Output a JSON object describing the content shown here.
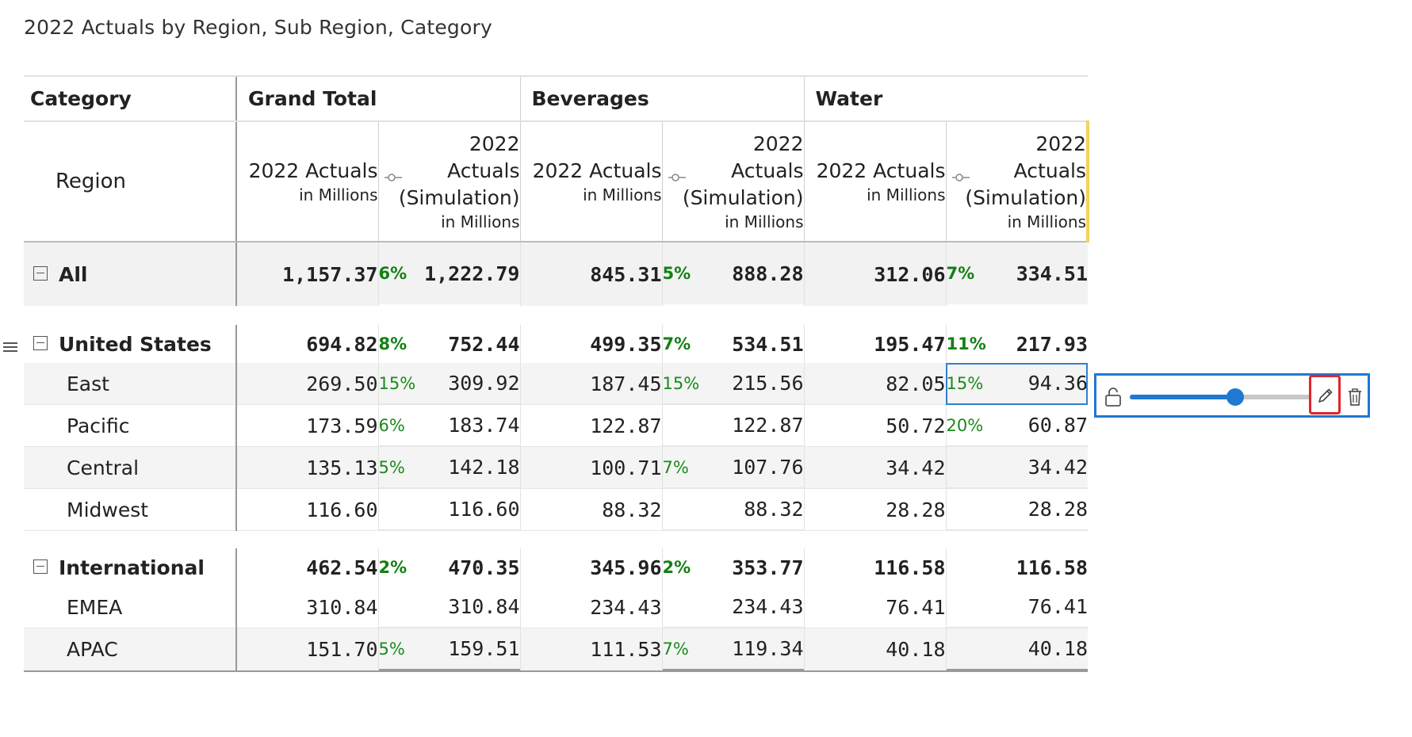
{
  "title": "2022 Actuals by Region, Sub Region, Category",
  "header": {
    "category_label": "Category",
    "region_label": "Region",
    "groups": [
      "Grand Total",
      "Beverages",
      "Water"
    ],
    "measure_actual": "2022 Actuals",
    "measure_sim_line1": "2022",
    "measure_sim_line2": "Actuals",
    "measure_sim_line3": "(Simulation)",
    "unit": "in Millions"
  },
  "rows": [
    {
      "label": "All",
      "gt_a": "1,157.37",
      "gt_p": "6%",
      "gt_s": "1,222.79",
      "bv_a": "845.31",
      "bv_p": "5%",
      "bv_s": "888.28",
      "wt_a": "312.06",
      "wt_p": "7%",
      "wt_s": "334.51"
    },
    {
      "label": "United States",
      "gt_a": "694.82",
      "gt_p": "8%",
      "gt_s": "752.44",
      "bv_a": "499.35",
      "bv_p": "7%",
      "bv_s": "534.51",
      "wt_a": "195.47",
      "wt_p": "11%",
      "wt_s": "217.93"
    },
    {
      "label": "East",
      "gt_a": "269.50",
      "gt_p": "15%",
      "gt_s": "309.92",
      "bv_a": "187.45",
      "bv_p": "15%",
      "bv_s": "215.56",
      "wt_a": "82.05",
      "wt_p": "15%",
      "wt_s": "94.36"
    },
    {
      "label": "Pacific",
      "gt_a": "173.59",
      "gt_p": "6%",
      "gt_s": "183.74",
      "bv_a": "122.87",
      "bv_p": "",
      "bv_s": "122.87",
      "wt_a": "50.72",
      "wt_p": "20%",
      "wt_s": "60.87"
    },
    {
      "label": "Central",
      "gt_a": "135.13",
      "gt_p": "5%",
      "gt_s": "142.18",
      "bv_a": "100.71",
      "bv_p": "7%",
      "bv_s": "107.76",
      "wt_a": "34.42",
      "wt_p": "",
      "wt_s": "34.42"
    },
    {
      "label": "Midwest",
      "gt_a": "116.60",
      "gt_p": "",
      "gt_s": "116.60",
      "bv_a": "88.32",
      "bv_p": "",
      "bv_s": "88.32",
      "wt_a": "28.28",
      "wt_p": "",
      "wt_s": "28.28"
    },
    {
      "label": "International",
      "gt_a": "462.54",
      "gt_p": "2%",
      "gt_s": "470.35",
      "bv_a": "345.96",
      "bv_p": "2%",
      "bv_s": "353.77",
      "wt_a": "116.58",
      "wt_p": "",
      "wt_s": "116.58"
    },
    {
      "label": "EMEA",
      "gt_a": "310.84",
      "gt_p": "",
      "gt_s": "310.84",
      "bv_a": "234.43",
      "bv_p": "",
      "bv_s": "234.43",
      "wt_a": "76.41",
      "wt_p": "",
      "wt_s": "76.41"
    },
    {
      "label": "APAC",
      "gt_a": "151.70",
      "gt_p": "5%",
      "gt_s": "159.51",
      "bv_a": "111.53",
      "bv_p": "7%",
      "bv_s": "119.34",
      "wt_a": "40.18",
      "wt_p": "",
      "wt_s": "40.18"
    }
  ],
  "editor": {
    "slider_value": 0.58,
    "icons": [
      "lock-icon",
      "pencil-icon",
      "trash-icon"
    ],
    "accent": "#1f78d1",
    "highlight": "#e0242a"
  }
}
